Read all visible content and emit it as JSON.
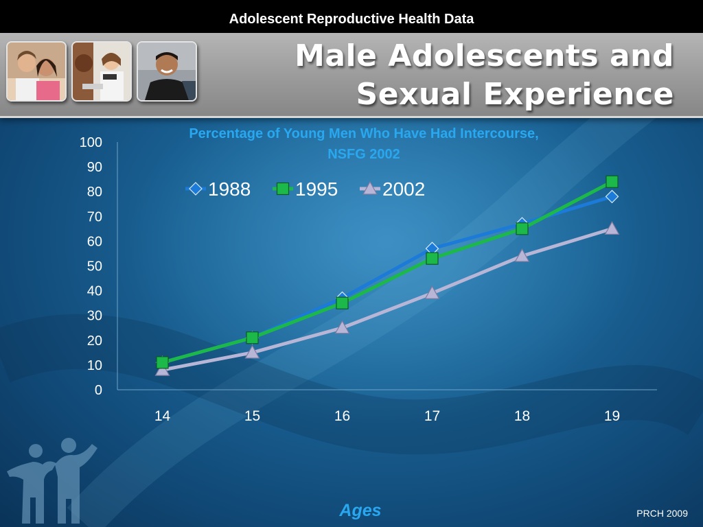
{
  "top_bar": {
    "text": "Adolescent Reproductive Health Data"
  },
  "slide": {
    "title_line1": "Male Adolescents and",
    "title_line2": "Sexual Experience"
  },
  "footer": {
    "xlabel": "Ages",
    "credit": "PRCH 2009"
  },
  "colors": {
    "title_blue": "#29a8f0",
    "s1988": "#1c7ad8",
    "s1995": "#1db84a",
    "s2002": "#b8b6d6"
  },
  "chart_data": {
    "type": "line",
    "title": "Percentage of Young Men Who Have Had Intercourse,",
    "subtitle": "NSFG 2002",
    "xlabel": "Ages",
    "ylabel": "",
    "categories": [
      "14",
      "15",
      "16",
      "17",
      "18",
      "19"
    ],
    "ylim": [
      0,
      100
    ],
    "yticks": [
      0,
      10,
      20,
      30,
      40,
      50,
      60,
      70,
      80,
      90,
      100
    ],
    "grid": false,
    "legend_position": "top-left",
    "series": [
      {
        "name": "1988",
        "values": [
          11,
          21,
          37,
          57,
          67,
          78
        ],
        "color": "#1c7ad8",
        "marker": "diamond"
      },
      {
        "name": "1995",
        "values": [
          11,
          21,
          35,
          53,
          65,
          84
        ],
        "color": "#1db84a",
        "marker": "square"
      },
      {
        "name": "2002",
        "values": [
          8,
          15,
          25,
          39,
          54,
          65
        ],
        "color": "#b8b6d6",
        "marker": "triangle"
      }
    ]
  }
}
